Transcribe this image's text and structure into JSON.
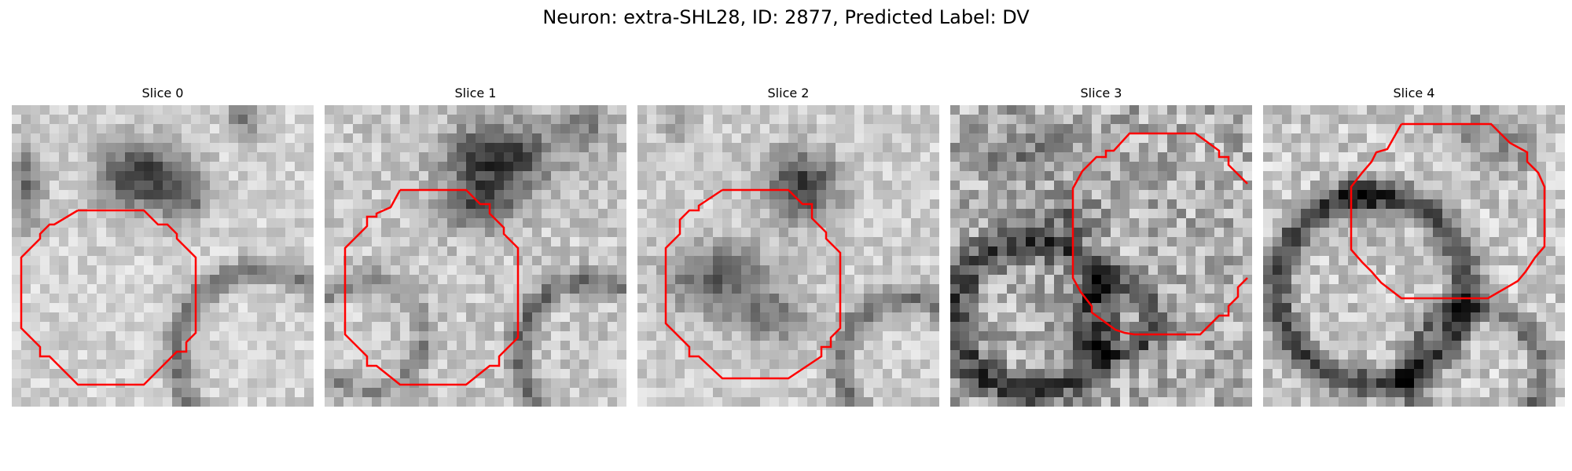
{
  "figure": {
    "title": "Neuron: extra-SHL28, ID: 2877, Predicted Label: DV"
  },
  "contour_color": "#ff0000",
  "panels": [
    {
      "title": "Slice 0"
    },
    {
      "title": "Slice 1"
    },
    {
      "title": "Slice 2"
    },
    {
      "title": "Slice 3"
    },
    {
      "title": "Slice 4"
    }
  ]
}
